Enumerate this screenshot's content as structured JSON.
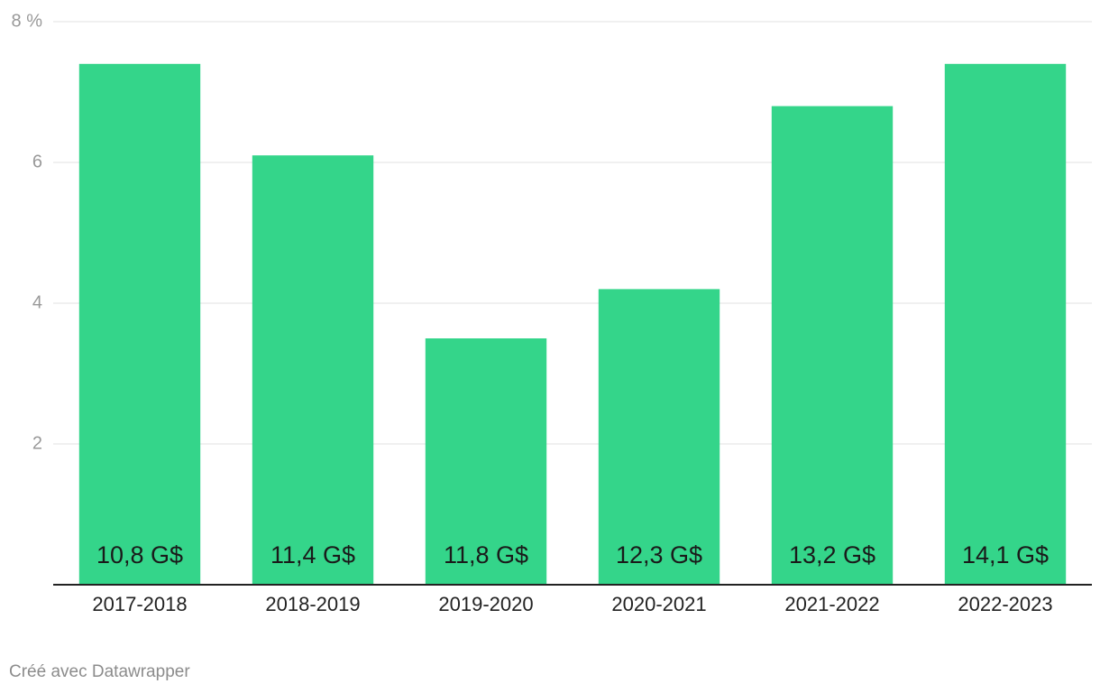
{
  "chart_data": {
    "type": "bar",
    "categories": [
      "2017-2018",
      "2018-2019",
      "2019-2020",
      "2020-2021",
      "2021-2022",
      "2022-2023"
    ],
    "values": [
      7.4,
      6.1,
      3.5,
      4.2,
      6.8,
      7.4
    ],
    "bar_labels": [
      "10,8 G$",
      "11,4 G$",
      "11,8 G$",
      "12,3 G$",
      "13,2 G$",
      "14,1 G$"
    ],
    "color": "#34d58a",
    "ylim": [
      0,
      8
    ],
    "yticks": [
      2,
      4,
      6,
      {
        "value": 8,
        "label": "8 %"
      }
    ],
    "grid": true,
    "credit": "Créé avec Datawrapper"
  }
}
